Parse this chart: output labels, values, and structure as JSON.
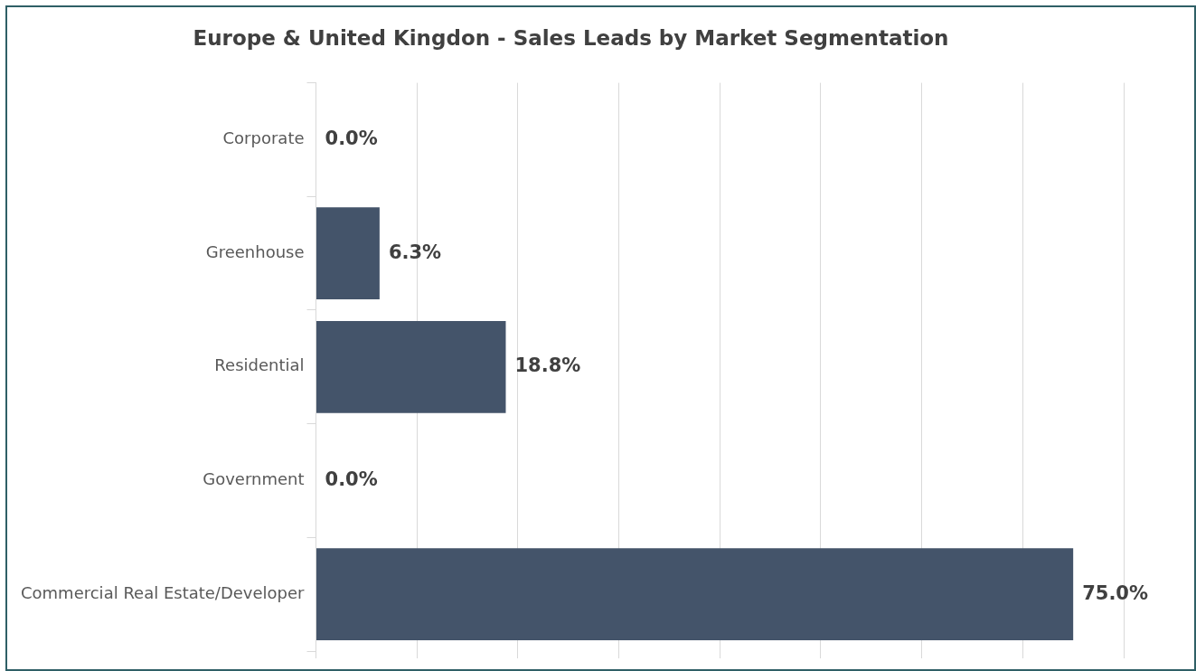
{
  "chart_data": {
    "type": "bar",
    "orientation": "horizontal",
    "title": "Europe & United Kingdon - Sales Leads by Market Segmentation",
    "categories": [
      "Corporate",
      "Greenhouse",
      "Residential",
      "Government",
      "Commercial Real Estate/Developer"
    ],
    "values": [
      0,
      6.3,
      18.8,
      0,
      75
    ],
    "value_labels": [
      "0.0%",
      "6.3%",
      "18.8%",
      "0.0%",
      "75.0%"
    ],
    "color": "#44546a",
    "xlim": [
      0,
      80
    ],
    "xticks": [
      {
        "value": 0,
        "label": null
      },
      {
        "value": 10,
        "label": null
      },
      {
        "value": 20,
        "label": null
      },
      {
        "value": 30,
        "label": null
      },
      {
        "value": 40,
        "label": null
      },
      {
        "value": 50,
        "label": null
      },
      {
        "value": 60,
        "label": null
      },
      {
        "value": 70,
        "label": null
      },
      {
        "value": 80,
        "label": null
      }
    ],
    "grid": "x",
    "tick_labels": "y"
  }
}
